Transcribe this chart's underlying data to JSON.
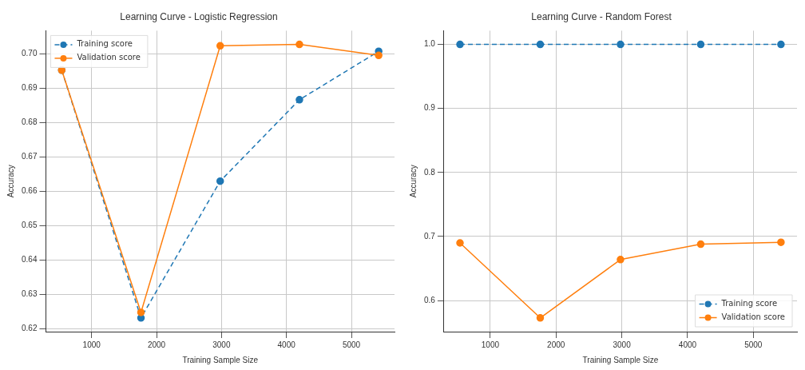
{
  "chart_data": [
    {
      "type": "line",
      "title": "Learning Curve - Logistic Regression",
      "xlabel": "Training Sample Size",
      "ylabel": "Accuracy",
      "x": [
        540,
        1760,
        2980,
        4200,
        5420
      ],
      "series": [
        {
          "name": "Training score",
          "color": "#1f77b4",
          "line_style": "dashed",
          "values": [
            0.6953,
            0.6232,
            0.663,
            0.6867,
            0.7008
          ]
        },
        {
          "name": "Validation score",
          "color": "#ff7f0e",
          "line_style": "solid",
          "values": [
            0.6953,
            0.6248,
            0.7024,
            0.7028,
            0.6996
          ]
        }
      ],
      "xlim": [
        296,
        5664
      ],
      "xticks": [
        1000,
        2000,
        3000,
        4000,
        5000
      ],
      "ylim": [
        0.6192,
        0.7068
      ],
      "yticks": [
        {
          "value": 0.62,
          "label": "0.62"
        },
        0.63,
        0.64,
        0.65,
        0.66,
        0.67,
        0.68,
        0.69,
        {
          "value": 0.7,
          "label": "0.70"
        }
      ],
      "grid": true,
      "legend": "top left",
      "marker": "circle"
    },
    {
      "type": "line",
      "title": "Learning Curve - Random Forest",
      "xlabel": "Training Sample Size",
      "ylabel": "Accuracy",
      "x": [
        540,
        1760,
        2980,
        4200,
        5420
      ],
      "series": [
        {
          "name": "Training score",
          "color": "#1f77b4",
          "line_style": "dashed",
          "values": [
            1.0,
            1.0,
            1.0,
            1.0,
            1.0
          ]
        },
        {
          "name": "Validation score",
          "color": "#ff7f0e",
          "line_style": "solid",
          "values": [
            0.69,
            0.573,
            0.664,
            0.688,
            0.691
          ]
        }
      ],
      "xlim": [
        296,
        5664
      ],
      "xticks": [
        1000,
        2000,
        3000,
        4000,
        5000
      ],
      "ylim": [
        0.5515,
        1.0214
      ],
      "yticks": [
        0.6,
        0.7,
        0.8,
        0.9,
        {
          "value": 1.0,
          "label": "1.0"
        }
      ],
      "grid": true,
      "legend": "bottom right",
      "marker": "circle"
    }
  ]
}
